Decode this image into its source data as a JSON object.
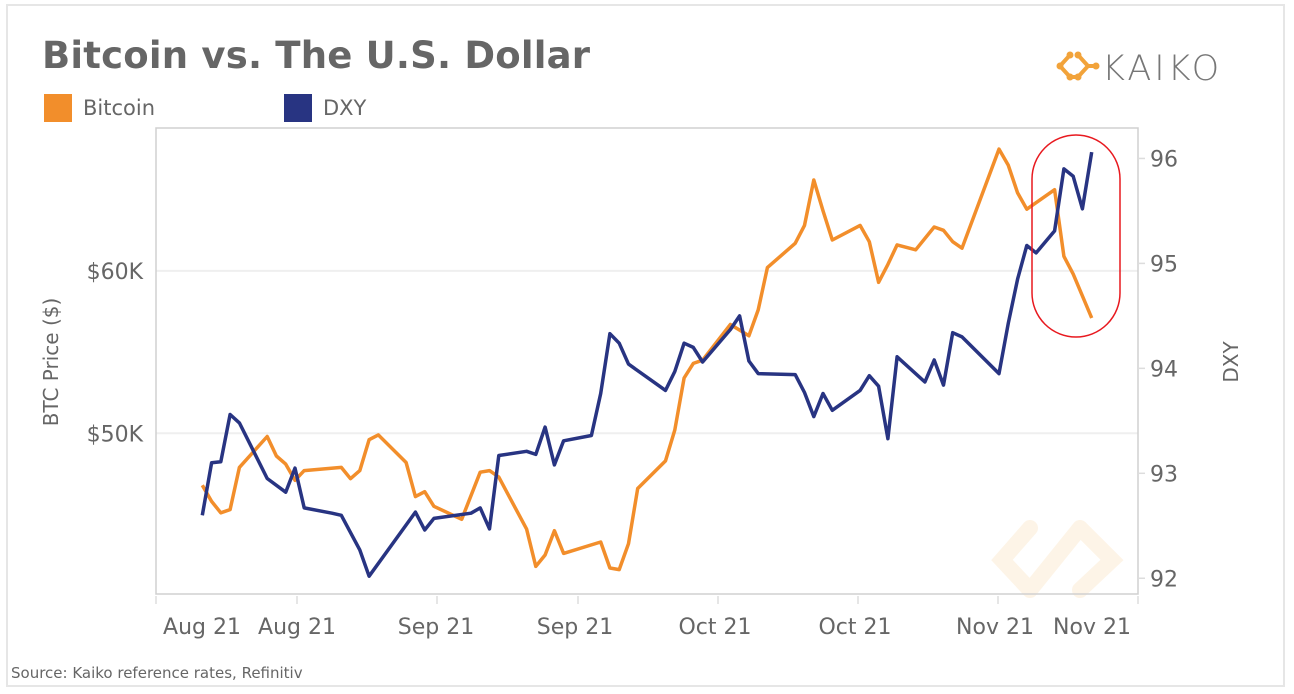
{
  "title": "Bitcoin vs. The U.S. Dollar",
  "logo_text": "KAIKO",
  "source": "Source: Kaiko reference rates, Refinitiv",
  "colors": {
    "bitcoin": "#F28E2B",
    "dxy": "#283482",
    "highlight": "#E8191F",
    "text": "#666666",
    "grid": "#EFEFEF"
  },
  "legend": [
    {
      "label": "Bitcoin"
    },
    {
      "label": "DXY"
    }
  ],
  "chart_data": {
    "type": "line",
    "title": "Bitcoin vs. The U.S. Dollar",
    "legend_position": "top-left",
    "grid": true,
    "xlabel": "",
    "x_tick_labels": [
      "Aug 21",
      "Aug 21",
      "Sep 21",
      "Sep 21",
      "Oct 21",
      "Oct 21",
      "Nov 21",
      "Nov 21"
    ],
    "xlim": [
      "2021-08-10",
      "2021-11-24"
    ],
    "left_axis": {
      "label": "BTC Price ($)",
      "ticks": [
        {
          "value": 50,
          "label": "$50K"
        },
        {
          "value": 60,
          "label": "$60K"
        }
      ],
      "unit": "thousand USD",
      "ylim": [
        40.1,
        68.8
      ]
    },
    "right_axis": {
      "label": "DXY",
      "ticks": [
        {
          "value": 92,
          "label": "92"
        },
        {
          "value": 93,
          "label": "93"
        },
        {
          "value": 94,
          "label": "94"
        },
        {
          "value": 95,
          "label": "95"
        },
        {
          "value": 96,
          "label": "96"
        }
      ],
      "ylim": [
        91.85,
        96.29
      ]
    },
    "annotation": "red rounded highlight around the final days (mid-Nov) where DXY rises and Bitcoin falls",
    "series": [
      {
        "name": "Bitcoin",
        "axis": "left",
        "color": "#F28E2B",
        "points": [
          [
            "2021-08-15",
            46.8
          ],
          [
            "2021-08-16",
            45.8
          ],
          [
            "2021-08-17",
            45.1
          ],
          [
            "2021-08-18",
            45.3
          ],
          [
            "2021-08-19",
            47.9
          ],
          [
            "2021-08-22",
            49.8
          ],
          [
            "2021-08-23",
            48.6
          ],
          [
            "2021-08-24",
            48.1
          ],
          [
            "2021-08-25",
            47.1
          ],
          [
            "2021-08-26",
            47.7
          ],
          [
            "2021-08-30",
            47.9
          ],
          [
            "2021-08-31",
            47.2
          ],
          [
            "2021-09-01",
            47.7
          ],
          [
            "2021-09-02",
            49.6
          ],
          [
            "2021-09-03",
            49.9
          ],
          [
            "2021-09-06",
            48.2
          ],
          [
            "2021-09-07",
            46.1
          ],
          [
            "2021-09-08",
            46.4
          ],
          [
            "2021-09-09",
            45.5
          ],
          [
            "2021-09-12",
            44.7
          ],
          [
            "2021-09-14",
            47.6
          ],
          [
            "2021-09-15",
            47.7
          ],
          [
            "2021-09-16",
            47.3
          ],
          [
            "2021-09-19",
            44.1
          ],
          [
            "2021-09-20",
            41.8
          ],
          [
            "2021-09-21",
            42.5
          ],
          [
            "2021-09-22",
            44.0
          ],
          [
            "2021-09-23",
            42.6
          ],
          [
            "2021-09-27",
            43.3
          ],
          [
            "2021-09-28",
            41.7
          ],
          [
            "2021-09-29",
            41.6
          ],
          [
            "2021-09-30",
            43.2
          ],
          [
            "2021-10-01",
            46.6
          ],
          [
            "2021-10-04",
            48.3
          ],
          [
            "2021-10-05",
            50.2
          ],
          [
            "2021-10-06",
            53.4
          ],
          [
            "2021-10-07",
            54.3
          ],
          [
            "2021-10-08",
            54.5
          ],
          [
            "2021-10-11",
            56.7
          ],
          [
            "2021-10-13",
            56.0
          ],
          [
            "2021-10-14",
            57.6
          ],
          [
            "2021-10-15",
            60.2
          ],
          [
            "2021-10-18",
            61.7
          ],
          [
            "2021-10-19",
            62.8
          ],
          [
            "2021-10-20",
            65.6
          ],
          [
            "2021-10-21",
            63.7
          ],
          [
            "2021-10-22",
            61.9
          ],
          [
            "2021-10-25",
            62.8
          ],
          [
            "2021-10-26",
            61.8
          ],
          [
            "2021-10-27",
            59.3
          ],
          [
            "2021-10-28",
            60.4
          ],
          [
            "2021-10-29",
            61.6
          ],
          [
            "2021-10-31",
            61.3
          ],
          [
            "2021-11-02",
            62.7
          ],
          [
            "2021-11-03",
            62.5
          ],
          [
            "2021-11-04",
            61.8
          ],
          [
            "2021-11-05",
            61.4
          ],
          [
            "2021-11-09",
            67.5
          ],
          [
            "2021-11-10",
            66.5
          ],
          [
            "2021-11-11",
            64.8
          ],
          [
            "2021-11-12",
            63.8
          ],
          [
            "2021-11-15",
            65.0
          ],
          [
            "2021-11-16",
            60.9
          ],
          [
            "2021-11-17",
            59.8
          ],
          [
            "2021-11-19",
            57.1
          ]
        ]
      },
      {
        "name": "DXY",
        "axis": "right",
        "color": "#283482",
        "points": [
          [
            "2021-08-15",
            92.6
          ],
          [
            "2021-08-16",
            93.1
          ],
          [
            "2021-08-17",
            93.11
          ],
          [
            "2021-08-18",
            93.56
          ],
          [
            "2021-08-19",
            93.48
          ],
          [
            "2021-08-22",
            92.95
          ],
          [
            "2021-08-24",
            92.82
          ],
          [
            "2021-08-25",
            93.05
          ],
          [
            "2021-08-26",
            92.67
          ],
          [
            "2021-08-29",
            92.62
          ],
          [
            "2021-08-30",
            92.6
          ],
          [
            "2021-09-01",
            92.27
          ],
          [
            "2021-09-02",
            92.02
          ],
          [
            "2021-09-07",
            92.63
          ],
          [
            "2021-09-08",
            92.46
          ],
          [
            "2021-09-09",
            92.57
          ],
          [
            "2021-09-13",
            92.62
          ],
          [
            "2021-09-14",
            92.67
          ],
          [
            "2021-09-15",
            92.47
          ],
          [
            "2021-09-16",
            93.17
          ],
          [
            "2021-09-19",
            93.21
          ],
          [
            "2021-09-20",
            93.18
          ],
          [
            "2021-09-21",
            93.44
          ],
          [
            "2021-09-22",
            93.08
          ],
          [
            "2021-09-23",
            93.31
          ],
          [
            "2021-09-26",
            93.36
          ],
          [
            "2021-09-27",
            93.76
          ],
          [
            "2021-09-28",
            94.33
          ],
          [
            "2021-09-29",
            94.24
          ],
          [
            "2021-09-30",
            94.04
          ],
          [
            "2021-10-04",
            93.79
          ],
          [
            "2021-10-05",
            93.97
          ],
          [
            "2021-10-06",
            94.24
          ],
          [
            "2021-10-07",
            94.2
          ],
          [
            "2021-10-08",
            94.06
          ],
          [
            "2021-10-11",
            94.37
          ],
          [
            "2021-10-12",
            94.5
          ],
          [
            "2021-10-13",
            94.07
          ],
          [
            "2021-10-14",
            93.95
          ],
          [
            "2021-10-18",
            93.94
          ],
          [
            "2021-10-19",
            93.77
          ],
          [
            "2021-10-20",
            93.54
          ],
          [
            "2021-10-21",
            93.76
          ],
          [
            "2021-10-22",
            93.6
          ],
          [
            "2021-10-25",
            93.79
          ],
          [
            "2021-10-26",
            93.93
          ],
          [
            "2021-10-27",
            93.83
          ],
          [
            "2021-10-28",
            93.33
          ],
          [
            "2021-10-29",
            94.11
          ],
          [
            "2021-11-01",
            93.87
          ],
          [
            "2021-11-02",
            94.08
          ],
          [
            "2021-11-03",
            93.84
          ],
          [
            "2021-11-04",
            94.34
          ],
          [
            "2021-11-05",
            94.3
          ],
          [
            "2021-11-09",
            93.95
          ],
          [
            "2021-11-10",
            94.43
          ],
          [
            "2021-11-11",
            94.85
          ],
          [
            "2021-11-12",
            95.17
          ],
          [
            "2021-11-13",
            95.1
          ],
          [
            "2021-11-15",
            95.31
          ],
          [
            "2021-11-16",
            95.9
          ],
          [
            "2021-11-17",
            95.83
          ],
          [
            "2021-11-18",
            95.52
          ],
          [
            "2021-11-19",
            96.06
          ]
        ]
      }
    ]
  }
}
